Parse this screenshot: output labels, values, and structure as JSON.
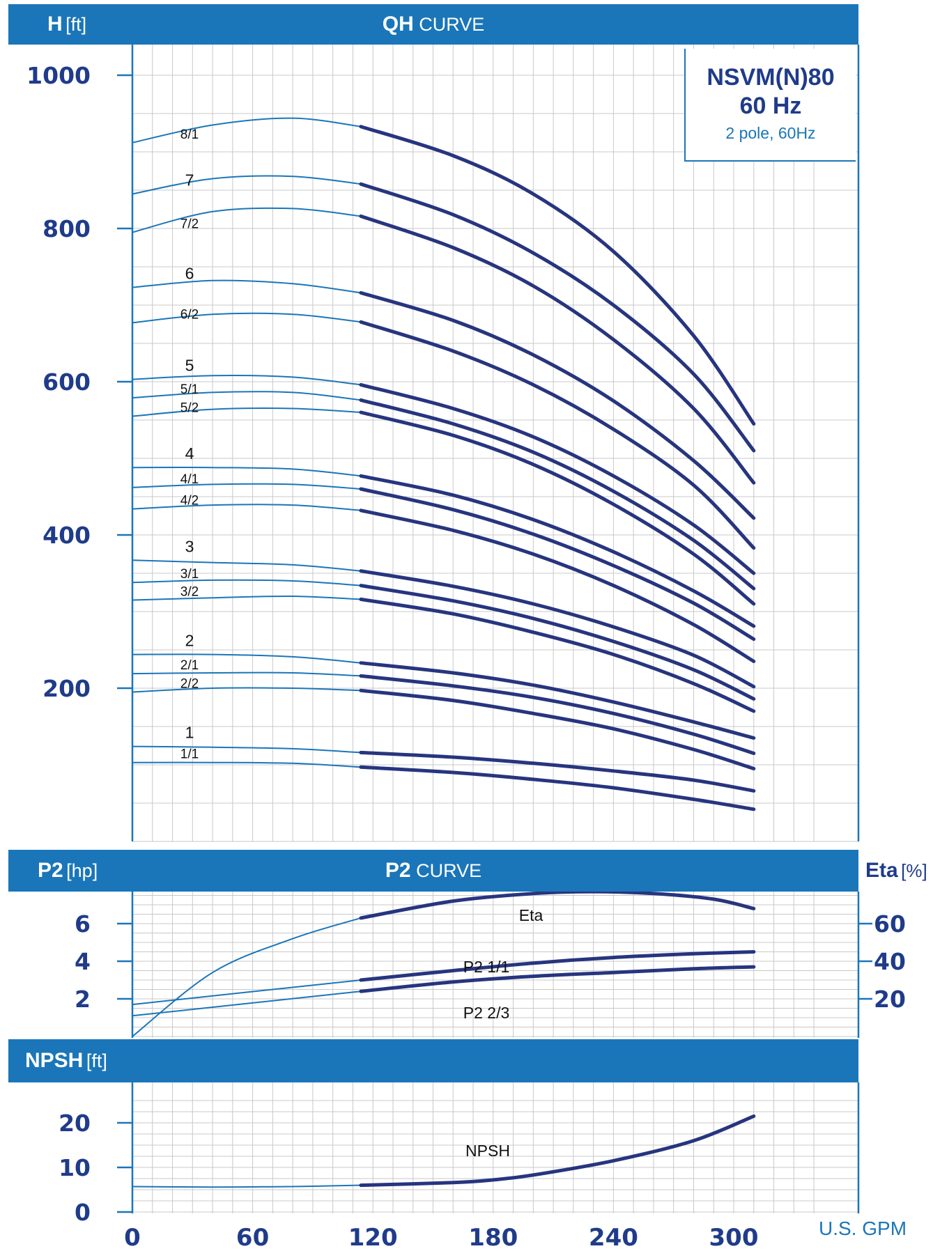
{
  "header": {
    "qh": {
      "axis_bold": "H",
      "axis_unit": "[ft]",
      "title_bold": "QH",
      "title_rest": " CURVE"
    },
    "p2": {
      "axis_bold": "P2",
      "axis_unit": "[hp]",
      "title_bold": "P2",
      "title_rest": " CURVE"
    },
    "eta": {
      "axis_bold": "Eta",
      "axis_unit": "[%]"
    },
    "npsh": {
      "axis_bold": "NPSH",
      "axis_unit": "[ft]"
    }
  },
  "model": {
    "name": "NSVM(N)80",
    "freq": "60 Hz",
    "desc": "2 pole, 60Hz"
  },
  "x_unit": "U.S. GPM",
  "colors": {
    "band": "#1a76b9",
    "curve": "#27357f",
    "axis_text": "#1f3b8a",
    "grid": "#c8c8c8"
  },
  "chart_data": [
    {
      "type": "line",
      "title": "QH CURVE",
      "xlabel": "U.S. GPM",
      "ylabel": "H [ft]",
      "xlim": [
        0,
        310
      ],
      "ylim": [
        0,
        1000
      ],
      "x_ticks": [
        0,
        60,
        120,
        180,
        240,
        300
      ],
      "y_ticks": [
        200,
        400,
        600,
        800,
        1000
      ],
      "grid": true,
      "operating_range_start": 114,
      "x": [
        0,
        40,
        80,
        114,
        160,
        200,
        240,
        280,
        310
      ],
      "series": [
        {
          "name": "8/1",
          "values": [
            912,
            935,
            944,
            933,
            895,
            845,
            770,
            660,
            545
          ]
        },
        {
          "name": "7",
          "values": [
            845,
            865,
            868,
            858,
            818,
            768,
            700,
            610,
            510
          ]
        },
        {
          "name": "7/2",
          "values": [
            795,
            822,
            826,
            816,
            775,
            725,
            655,
            565,
            468
          ]
        },
        {
          "name": "6",
          "values": [
            723,
            732,
            728,
            716,
            680,
            635,
            575,
            497,
            422
          ]
        },
        {
          "name": "6/2",
          "values": [
            677,
            688,
            688,
            678,
            640,
            596,
            538,
            465,
            383
          ]
        },
        {
          "name": "5",
          "values": [
            603,
            608,
            606,
            596,
            565,
            528,
            477,
            413,
            350
          ]
        },
        {
          "name": "5/1",
          "values": [
            579,
            586,
            586,
            576,
            545,
            508,
            457,
            393,
            330
          ]
        },
        {
          "name": "5/2",
          "values": [
            555,
            564,
            565,
            560,
            530,
            492,
            440,
            375,
            310
          ]
        },
        {
          "name": "4",
          "values": [
            488,
            488,
            486,
            477,
            452,
            420,
            378,
            327,
            281
          ]
        },
        {
          "name": "4/1",
          "values": [
            462,
            466,
            466,
            460,
            433,
            401,
            360,
            311,
            264
          ]
        },
        {
          "name": "4/2",
          "values": [
            434,
            439,
            439,
            432,
            406,
            375,
            334,
            283,
            235
          ]
        },
        {
          "name": "3",
          "values": [
            367,
            364,
            361,
            353,
            333,
            310,
            280,
            243,
            202
          ]
        },
        {
          "name": "3/1",
          "values": [
            338,
            341,
            340,
            334,
            314,
            291,
            261,
            224,
            186
          ]
        },
        {
          "name": "3/2",
          "values": [
            315,
            318,
            320,
            316,
            297,
            273,
            244,
            206,
            170
          ]
        },
        {
          "name": "2",
          "values": [
            244,
            244,
            241,
            233,
            220,
            204,
            182,
            156,
            135
          ]
        },
        {
          "name": "2/1",
          "values": [
            219,
            220,
            220,
            216,
            203,
            188,
            167,
            140,
            115
          ]
        },
        {
          "name": "2/2",
          "values": [
            195,
            200,
            200,
            197,
            184,
            167,
            147,
            120,
            95
          ]
        },
        {
          "name": "1",
          "values": [
            124,
            123,
            121,
            116,
            110,
            102,
            92,
            80,
            66
          ]
        },
        {
          "name": "1/1",
          "values": [
            103,
            103,
            102,
            97,
            90,
            81,
            70,
            55,
            42
          ]
        }
      ]
    },
    {
      "type": "line",
      "title": "P2 CURVE",
      "xlabel": "U.S. GPM",
      "ylabel": "P2 [hp]",
      "y2label": "Eta [%]",
      "xlim": [
        0,
        310
      ],
      "ylim": [
        0,
        8
      ],
      "y2lim": [
        0,
        80
      ],
      "y_ticks": [
        2,
        4,
        6
      ],
      "y2_ticks": [
        20,
        40,
        60
      ],
      "grid": true,
      "operating_range_start": 114,
      "series": [
        {
          "name": "Eta",
          "axis": "right",
          "x": [
            0,
            40,
            80,
            114,
            160,
            200,
            230,
            260,
            290,
            310
          ],
          "values": [
            0,
            34,
            52,
            63,
            72,
            76,
            77,
            76,
            73,
            68
          ]
        },
        {
          "name": "P2 1/1",
          "axis": "left",
          "x": [
            0,
            114,
            160,
            200,
            240,
            280,
            310
          ],
          "values": [
            1.7,
            3.0,
            3.5,
            3.9,
            4.2,
            4.4,
            4.5
          ]
        },
        {
          "name": "P2 2/3",
          "axis": "left",
          "x": [
            0,
            114,
            160,
            200,
            240,
            280,
            310
          ],
          "values": [
            1.1,
            2.4,
            2.9,
            3.2,
            3.4,
            3.6,
            3.7
          ]
        }
      ]
    },
    {
      "type": "line",
      "title": "",
      "xlabel": "U.S. GPM",
      "ylabel": "NPSH [ft]",
      "xlim": [
        0,
        310
      ],
      "ylim": [
        0,
        25
      ],
      "y_ticks": [
        0,
        10,
        20
      ],
      "grid": true,
      "operating_range_start": 114,
      "x": [
        0,
        40,
        80,
        114,
        160,
        180,
        200,
        240,
        280,
        310
      ],
      "series": [
        {
          "name": "NPSH",
          "values": [
            5.7,
            5.6,
            5.7,
            6.0,
            6.6,
            7.2,
            8.3,
            11.5,
            16.0,
            21.5
          ]
        }
      ]
    }
  ]
}
